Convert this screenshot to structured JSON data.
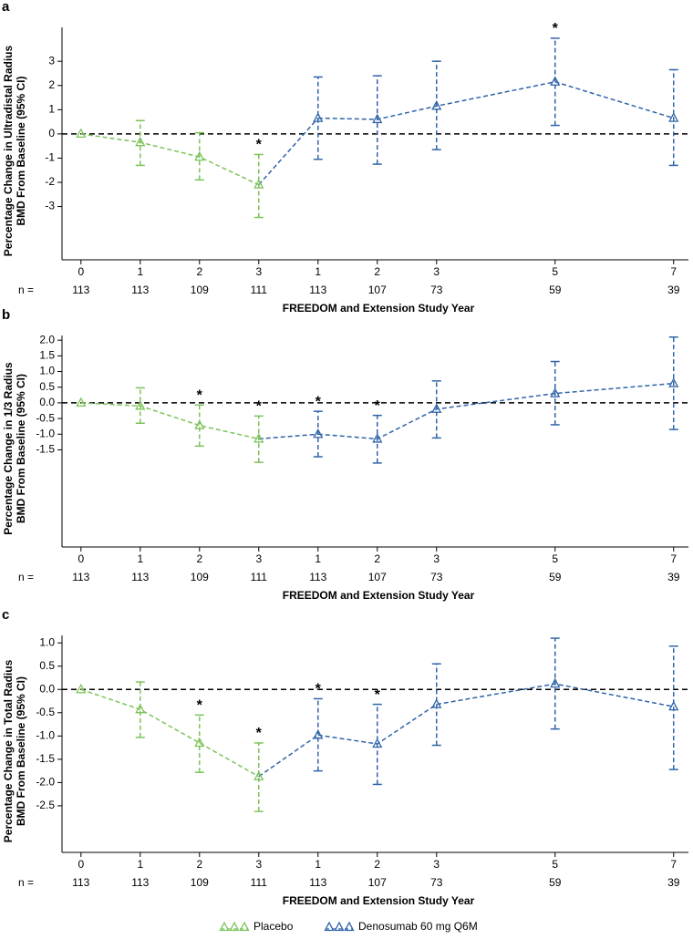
{
  "chart_data": [
    {
      "type": "line",
      "panel_label": "a",
      "ylabel": [
        "Percentage Change in Ultradistal Radius",
        "BMD From Baseline (95% CI)"
      ],
      "xlabel": "FREEDOM and Extension Study Year",
      "n_label": "n =",
      "n": [
        113,
        113,
        109,
        111,
        113,
        107,
        73,
        59,
        39
      ],
      "xlim": [
        -0.32,
        10.25
      ],
      "xticks": [
        {
          "value": 0,
          "label": "0"
        },
        {
          "value": 1,
          "label": "1"
        },
        {
          "value": 2,
          "label": "2"
        },
        {
          "value": 3,
          "label": "3"
        },
        {
          "value": 4,
          "label": "1"
        },
        {
          "value": 5,
          "label": "2"
        },
        {
          "value": 6,
          "label": "3"
        },
        {
          "value": 8,
          "label": "5"
        },
        {
          "value": 10,
          "label": "7"
        }
      ],
      "ylim": [
        -5.2,
        4.4
      ],
      "yticks": [
        3,
        2,
        1,
        0,
        -1,
        -2,
        -3
      ],
      "reference_y": 0,
      "series": [
        {
          "name": "Placebo",
          "color": "#7cc35a",
          "x": [
            0,
            1,
            2,
            3
          ],
          "values": [
            0,
            -0.35,
            -0.95,
            -2.1
          ],
          "ci_low": [
            null,
            -1.3,
            -1.9,
            -3.45
          ],
          "ci_high": [
            null,
            0.55,
            0.05,
            -0.85
          ]
        },
        {
          "name": "Denosumab 60 mg Q6M",
          "color": "#3064a8",
          "x": [
            4,
            5,
            6,
            8,
            10
          ],
          "values": [
            0.65,
            0.6,
            1.15,
            2.15,
            0.65
          ],
          "ci_low": [
            -1.05,
            -1.25,
            -0.65,
            0.35,
            -1.3
          ],
          "ci_high": [
            2.35,
            2.4,
            3.0,
            3.95,
            2.65
          ]
        }
      ],
      "annotations": [
        {
          "x": 3,
          "text": "*"
        },
        {
          "x": 8,
          "text": "*"
        }
      ]
    },
    {
      "type": "line",
      "panel_label": "b",
      "ylabel": [
        "Percentage Change in 1/3 Radius",
        "BMD From Baseline (95% CI)"
      ],
      "xlabel": "FREEDOM and Extension Study Year",
      "n_label": "n =",
      "n": [
        113,
        113,
        109,
        111,
        113,
        107,
        73,
        59,
        39
      ],
      "xlim": [
        -0.32,
        10.25
      ],
      "xticks": [
        {
          "value": 0,
          "label": "0"
        },
        {
          "value": 1,
          "label": "1"
        },
        {
          "value": 2,
          "label": "2"
        },
        {
          "value": 3,
          "label": "3"
        },
        {
          "value": 4,
          "label": "1"
        },
        {
          "value": 5,
          "label": "2"
        },
        {
          "value": 6,
          "label": "3"
        },
        {
          "value": 8,
          "label": "5"
        },
        {
          "value": 10,
          "label": "7"
        }
      ],
      "ylim": [
        -4.6,
        2.15
      ],
      "yticks": [
        {
          "value": 2,
          "label": "2.0"
        },
        1.5,
        {
          "value": 1,
          "label": "1.0"
        },
        0.5,
        {
          "value": 0,
          "label": "0.0"
        },
        -0.5,
        {
          "value": -1,
          "label": "-1.0"
        },
        -1.5
      ],
      "reference_y": 0,
      "series": [
        {
          "name": "Placebo",
          "color": "#7cc35a",
          "x": [
            0,
            1,
            2,
            3
          ],
          "values": [
            0,
            -0.1,
            -0.72,
            -1.15
          ],
          "ci_low": [
            null,
            -0.65,
            -1.38,
            -1.9
          ],
          "ci_high": [
            null,
            0.48,
            -0.07,
            -0.42
          ]
        },
        {
          "name": "Denosumab 60 mg Q6M",
          "color": "#3064a8",
          "x": [
            4,
            5,
            6,
            8,
            10
          ],
          "values": [
            -1.0,
            -1.15,
            -0.2,
            0.3,
            0.62
          ],
          "ci_low": [
            -1.72,
            -1.92,
            -1.12,
            -0.7,
            -0.85
          ],
          "ci_high": [
            -0.27,
            -0.4,
            0.7,
            1.32,
            2.1
          ]
        }
      ],
      "annotations": [
        {
          "x": 2,
          "text": "*"
        },
        {
          "x": 3,
          "text": "*"
        },
        {
          "x": 4,
          "text": "*"
        },
        {
          "x": 5,
          "text": "*"
        }
      ]
    },
    {
      "type": "line",
      "panel_label": "c",
      "ylabel": [
        "Percentage Change in Total Radius",
        "BMD From Baseline (95% CI)"
      ],
      "xlabel": "FREEDOM and Extension Study Year",
      "n_label": "n =",
      "n": [
        113,
        113,
        109,
        111,
        113,
        107,
        73,
        59,
        39
      ],
      "xlim": [
        -0.32,
        10.25
      ],
      "xticks": [
        {
          "value": 0,
          "label": "0"
        },
        {
          "value": 1,
          "label": "1"
        },
        {
          "value": 2,
          "label": "2"
        },
        {
          "value": 3,
          "label": "3"
        },
        {
          "value": 4,
          "label": "1"
        },
        {
          "value": 5,
          "label": "2"
        },
        {
          "value": 6,
          "label": "3"
        },
        {
          "value": 8,
          "label": "5"
        },
        {
          "value": 10,
          "label": "7"
        }
      ],
      "ylim": [
        -3.5,
        1.16
      ],
      "yticks": [
        {
          "value": 1,
          "label": "1.0"
        },
        0.5,
        {
          "value": 0,
          "label": "0.0"
        },
        -0.5,
        {
          "value": -1,
          "label": "-1.0"
        },
        -1.5,
        {
          "value": -2,
          "label": "-2.0"
        },
        -2.5
      ],
      "reference_y": 0,
      "series": [
        {
          "name": "Placebo",
          "color": "#7cc35a",
          "x": [
            0,
            1,
            2,
            3
          ],
          "values": [
            0,
            -0.43,
            -1.15,
            -1.87
          ],
          "ci_low": [
            null,
            -1.03,
            -1.78,
            -2.62
          ],
          "ci_high": [
            null,
            0.16,
            -0.55,
            -1.15
          ]
        },
        {
          "name": "Denosumab 60 mg Q6M",
          "color": "#3064a8",
          "x": [
            4,
            5,
            6,
            8,
            10
          ],
          "values": [
            -0.98,
            -1.17,
            -0.32,
            0.12,
            -0.37
          ],
          "ci_low": [
            -1.75,
            -2.04,
            -1.2,
            -0.85,
            -1.72
          ],
          "ci_high": [
            -0.2,
            -0.32,
            0.55,
            1.1,
            0.93
          ]
        }
      ],
      "annotations": [
        {
          "x": 2,
          "text": "*"
        },
        {
          "x": 3,
          "text": "*"
        },
        {
          "x": 4,
          "text": "*"
        },
        {
          "x": 5,
          "text": "*"
        }
      ]
    }
  ]
}
